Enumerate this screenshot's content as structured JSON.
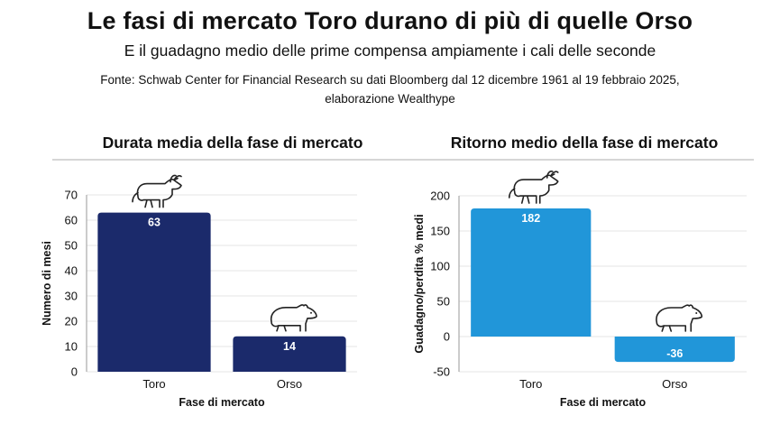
{
  "header": {
    "title": "Le fasi di mercato Toro durano di più di quelle Orso",
    "subtitle": "E il guadagno medio delle prime compensa ampiamente i cali delle seconde",
    "source_line1": "Fonte: Schwab Center for Financial Research su dati Bloomberg dal 12 dicembre 1961 al 19 febbraio 2025,",
    "source_line2": "elaborazione Wealthype"
  },
  "colors": {
    "chart1_bar": "#1b2a6b",
    "chart2_bar": "#2196d9",
    "grid": "#e6e6e6",
    "axis": "#9a9a9a"
  },
  "icons": [
    "bull-icon",
    "bear-icon"
  ],
  "chart_data": [
    {
      "type": "bar",
      "title": "Durata media della fase di mercato",
      "categories": [
        "Toro",
        "Orso"
      ],
      "values": [
        63,
        14
      ],
      "value_labels": [
        "63",
        "14"
      ],
      "xlabel": "Fase di mercato",
      "ylabel": "Numero di mesi",
      "ylim": [
        0,
        70
      ],
      "yticks": [
        0,
        10,
        20,
        30,
        40,
        50,
        60,
        70
      ],
      "grid": true,
      "bar_color": "#1b2a6b"
    },
    {
      "type": "bar",
      "title": "Ritorno medio della fase di mercato",
      "categories": [
        "Toro",
        "Orso"
      ],
      "values": [
        182,
        -36
      ],
      "value_labels": [
        "182",
        "-36"
      ],
      "xlabel": "Fase di mercato",
      "ylabel": "Guadagno/perdita % medi",
      "ylim": [
        -50,
        200
      ],
      "yticks": [
        -50,
        0,
        50,
        100,
        150,
        200
      ],
      "grid": true,
      "bar_color": "#2196d9"
    }
  ]
}
